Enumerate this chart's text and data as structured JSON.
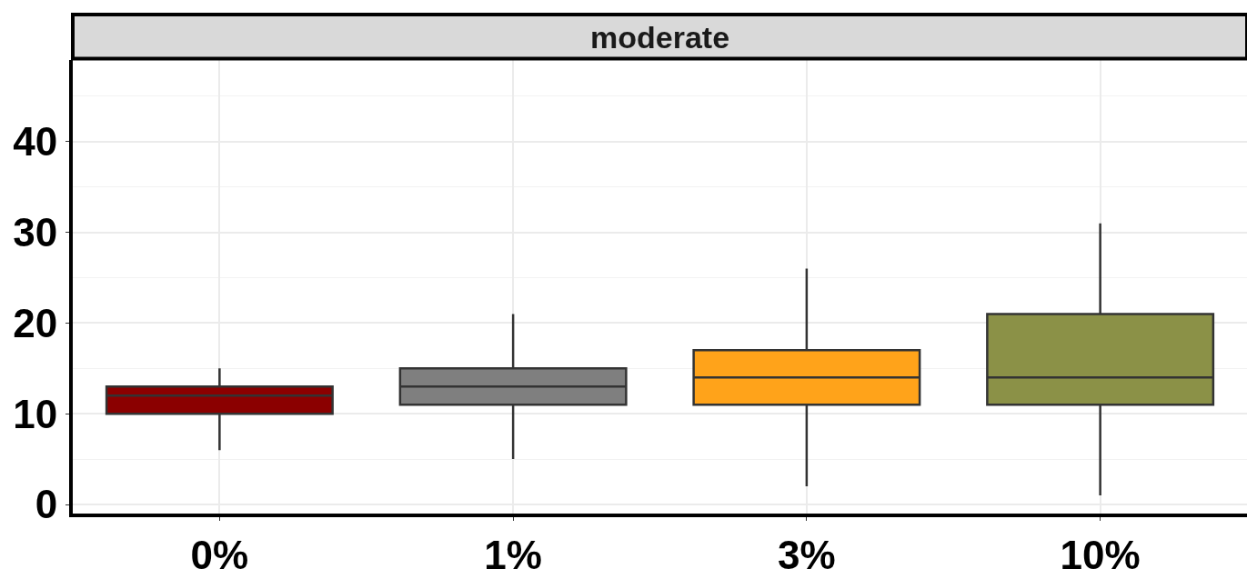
{
  "chart_data": {
    "type": "box",
    "title": "moderate",
    "categories": [
      "0%",
      "1%",
      "3%",
      "10%"
    ],
    "boxes": [
      {
        "low": 6,
        "q1": 10,
        "median": 12,
        "q3": 13,
        "high": 15
      },
      {
        "low": 5,
        "q1": 11,
        "median": 13,
        "q3": 15,
        "high": 21
      },
      {
        "low": 2,
        "q1": 11,
        "median": 14,
        "q3": 17,
        "high": 26
      },
      {
        "low": 1,
        "q1": 11,
        "median": 14,
        "q3": 21,
        "high": 31
      }
    ],
    "colors": [
      "#8b0000",
      "#7f7f7f",
      "#ffa31a",
      "#8b9147"
    ],
    "ylim": [
      -1,
      49
    ],
    "yticks": [
      0,
      10,
      20,
      30,
      40
    ],
    "grid": true
  }
}
